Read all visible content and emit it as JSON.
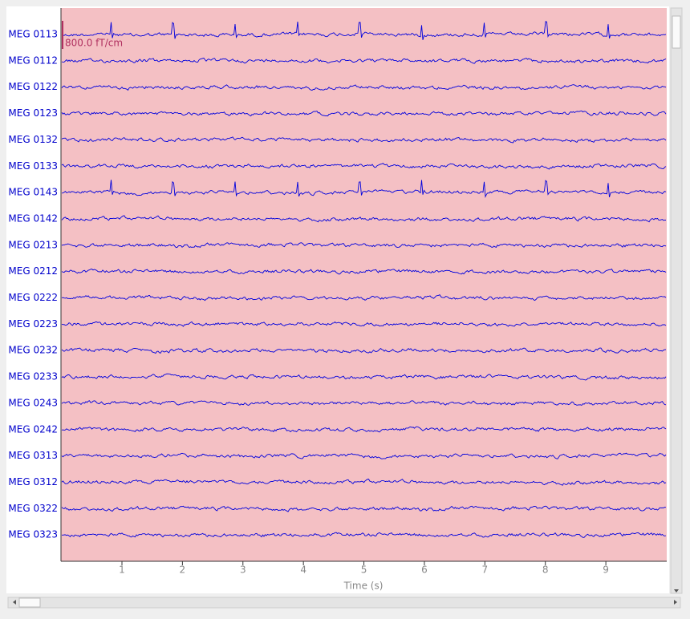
{
  "chart_data": {
    "type": "raw-traces",
    "channels": [
      "MEG 0113",
      "MEG 0112",
      "MEG 0122",
      "MEG 0123",
      "MEG 0132",
      "MEG 0133",
      "MEG 0143",
      "MEG 0142",
      "MEG 0213",
      "MEG 0212",
      "MEG 0222",
      "MEG 0223",
      "MEG 0232",
      "MEG 0233",
      "MEG 0243",
      "MEG 0242",
      "MEG 0313",
      "MEG 0312",
      "MEG 0322",
      "MEG 0323"
    ],
    "scale_label": "800.0 fT/cm",
    "xlabel": "Time (s)",
    "xlim": [
      0,
      10
    ],
    "xticks": [
      1,
      2,
      3,
      4,
      5,
      6,
      7,
      8,
      9
    ],
    "background": "#f4c0c4",
    "trace_color": "#0000dd"
  }
}
